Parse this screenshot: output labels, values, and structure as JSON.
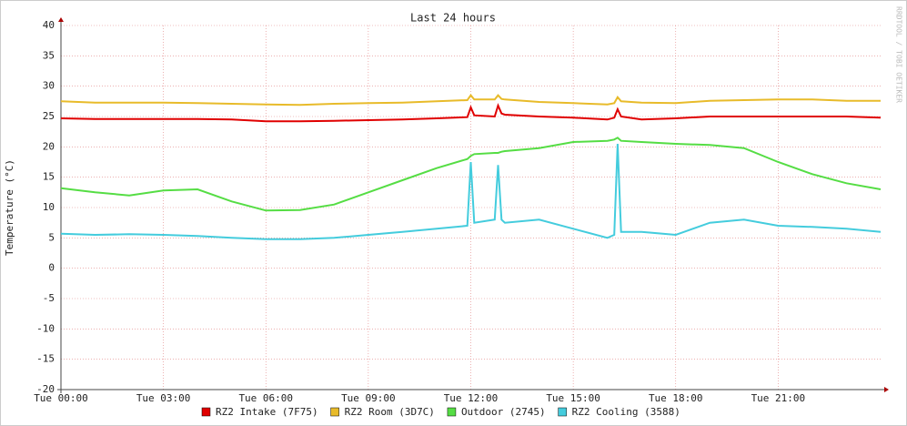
{
  "chart_data": {
    "type": "line",
    "title": "Last 24 hours",
    "y_label": "Temperature (°C)",
    "watermark": "RRDTOOL / TOBI OETIKER",
    "x": [
      0,
      1,
      2,
      3,
      4,
      5,
      6,
      7,
      8,
      9,
      10,
      11,
      11.9,
      12,
      12.1,
      12.7,
      12.8,
      12.9,
      13,
      14,
      15,
      16,
      16.2,
      16.3,
      16.4,
      17,
      18,
      19,
      20,
      21,
      22,
      23,
      24
    ],
    "xlim": [
      0,
      24
    ],
    "xticks": [
      {
        "value": 0,
        "label": "Tue 00:00"
      },
      {
        "value": 3,
        "label": "Tue 03:00"
      },
      {
        "value": 6,
        "label": "Tue 06:00"
      },
      {
        "value": 9,
        "label": "Tue 09:00"
      },
      {
        "value": 12,
        "label": "Tue 12:00"
      },
      {
        "value": 15,
        "label": "Tue 15:00"
      },
      {
        "value": 18,
        "label": "Tue 18:00"
      },
      {
        "value": 21,
        "label": "Tue 21:00"
      }
    ],
    "ylim": [
      -20,
      40
    ],
    "yticks": [
      -20,
      -15,
      -10,
      -5,
      0,
      5,
      10,
      15,
      20,
      25,
      30,
      35,
      40
    ],
    "grid": true,
    "legend": "bottom",
    "series": [
      {
        "name": "RZ2 Intake (7F75)",
        "color": "#e00000",
        "values": [
          24.7,
          24.6,
          24.6,
          24.6,
          24.6,
          24.5,
          24.2,
          24.2,
          24.3,
          24.4,
          24.5,
          24.7,
          24.9,
          26.5,
          25.2,
          25,
          26.8,
          25.5,
          25.3,
          25,
          24.8,
          24.5,
          24.8,
          26.2,
          25,
          24.5,
          24.7,
          25,
          25,
          25,
          25,
          25,
          24.8
        ]
      },
      {
        "name": "RZ2 Room (3D7C)",
        "color": "#e8bb2a",
        "values": [
          27.5,
          27.3,
          27.3,
          27.3,
          27.2,
          27.1,
          27,
          26.9,
          27.1,
          27.2,
          27.3,
          27.5,
          27.7,
          28.5,
          27.8,
          27.8,
          28.5,
          27.9,
          27.8,
          27.4,
          27.2,
          27,
          27.2,
          28.2,
          27.5,
          27.3,
          27.2,
          27.6,
          27.7,
          27.8,
          27.8,
          27.6,
          27.6
        ]
      },
      {
        "name": "Outdoor (2745)",
        "color": "#55dd44",
        "values": [
          13.2,
          12.5,
          12,
          12.8,
          13,
          11,
          9.5,
          9.6,
          10.5,
          12.5,
          14.5,
          16.5,
          18,
          18.5,
          18.8,
          19,
          19,
          19.2,
          19.3,
          19.8,
          20.8,
          21,
          21.2,
          21.5,
          21,
          20.8,
          20.5,
          20.3,
          19.8,
          17.5,
          15.5,
          14,
          13
        ]
      },
      {
        "name": "RZ2 Cooling (3588)",
        "color": "#44ccdd",
        "values": [
          5.7,
          5.5,
          5.6,
          5.5,
          5.3,
          5,
          4.8,
          4.8,
          5,
          5.5,
          6,
          6.5,
          7,
          17.5,
          7.5,
          8,
          17,
          8,
          7.5,
          8,
          6.5,
          5,
          5.5,
          20.5,
          6,
          6,
          5.5,
          7.5,
          8,
          7,
          6.8,
          6.5,
          6
        ]
      }
    ]
  }
}
